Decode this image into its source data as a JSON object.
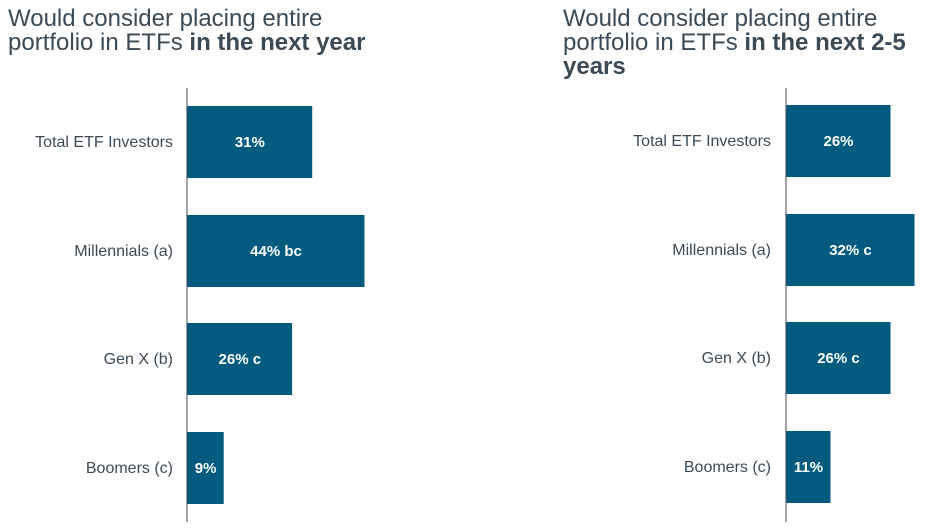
{
  "chart_data": [
    {
      "type": "bar",
      "orientation": "horizontal",
      "title_prefix": "Would consider placing entire portfolio in ETFs ",
      "title_emphasis": "in the next year",
      "categories": [
        "Total ETF Investors",
        "Millennials (a)",
        "Gen X (b)",
        "Boomers (c)"
      ],
      "values": [
        31,
        44,
        26,
        9
      ],
      "value_labels": [
        "31%",
        "44% bc",
        "26% c",
        "9%"
      ],
      "xlim": [
        0,
        60
      ],
      "color": "#005b7f"
    },
    {
      "type": "bar",
      "orientation": "horizontal",
      "title_prefix": "Would consider placing entire portfolio in ETFs ",
      "title_emphasis": "in the next 2-5 years",
      "categories": [
        "Total ETF Investors",
        "Millennials (a)",
        "Gen X (b)",
        "Boomers (c)"
      ],
      "values": [
        26,
        32,
        26,
        11
      ],
      "value_labels": [
        "26%",
        "32% c",
        "26% c",
        "11%"
      ],
      "xlim": [
        0,
        40
      ],
      "color": "#005b7f"
    }
  ]
}
